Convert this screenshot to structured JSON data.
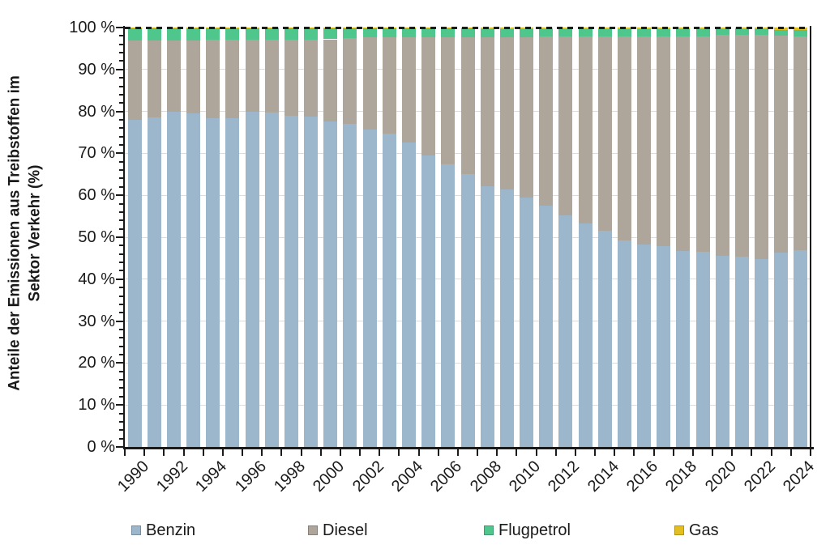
{
  "figure": {
    "y_axis_title_line1": "Anteile der Emissionen aus Treibstoffen im",
    "y_axis_title_line2": "Sektor Verkehr (%)"
  },
  "chart_data": {
    "type": "bar",
    "stacked": true,
    "title": "",
    "xlabel": "",
    "ylabel": "Anteile der Emissionen aus Treibstoffen im Sektor Verkehr (%)",
    "ylim": [
      0,
      100
    ],
    "y_major_tick_step": 10,
    "y_minor_tick_step": 2,
    "y_tick_labels": [
      "0 %",
      "10 %",
      "20 %",
      "30 %",
      "40 %",
      "50 %",
      "60 %",
      "70 %",
      "80 %",
      "90 %",
      "100 %"
    ],
    "grid": "horizontal-major",
    "reference_line": {
      "y": 100,
      "style": "dashed",
      "color": "#1a1a1a"
    },
    "legend_position": "bottom",
    "categories": [
      1990,
      1991,
      1992,
      1993,
      1994,
      1995,
      1996,
      1997,
      1998,
      1999,
      2000,
      2001,
      2002,
      2003,
      2004,
      2005,
      2006,
      2007,
      2008,
      2009,
      2010,
      2011,
      2012,
      2013,
      2014,
      2015,
      2016,
      2017,
      2018,
      2019,
      2020,
      2021,
      2022,
      2023,
      2024
    ],
    "x_tick_labels": [
      "1990",
      "1992",
      "1994",
      "1996",
      "1998",
      "2000",
      "2002",
      "2004",
      "2006",
      "2008",
      "2010",
      "2012",
      "2014",
      "2016",
      "2018",
      "2020",
      "2022",
      "2024"
    ],
    "series": [
      {
        "name": "Benzin",
        "color": "#9CB6CB",
        "values": [
          78.0,
          78.6,
          80.0,
          79.5,
          78.4,
          78.3,
          80.0,
          79.7,
          79.0,
          78.8,
          77.6,
          77.1,
          75.7,
          74.7,
          72.5,
          69.5,
          67.3,
          65.0,
          62.2,
          61.3,
          59.5,
          57.5,
          55.3,
          53.2,
          51.5,
          49.2,
          48.3,
          47.8,
          46.8,
          46.6,
          45.5,
          45.4,
          44.8,
          46.4,
          47.0
        ]
      },
      {
        "name": "Diesel",
        "color": "#AEA69B",
        "values": [
          18.9,
          18.3,
          17.0,
          17.5,
          18.7,
          18.8,
          17.1,
          17.4,
          18.1,
          18.3,
          19.6,
          20.3,
          21.9,
          23.0,
          25.2,
          28.2,
          30.4,
          32.7,
          35.5,
          36.4,
          38.2,
          40.3,
          42.5,
          44.7,
          46.4,
          48.7,
          49.6,
          50.1,
          51.1,
          51.3,
          52.8,
          52.9,
          53.4,
          51.6,
          50.9
        ]
      },
      {
        "name": "Flugpetrol",
        "color": "#4FC78C",
        "values": [
          3.0,
          3.0,
          2.9,
          2.9,
          2.8,
          2.8,
          2.8,
          2.8,
          2.8,
          2.8,
          2.6,
          2.4,
          2.2,
          2.1,
          2.1,
          2.1,
          2.1,
          2.1,
          2.0,
          2.0,
          2.0,
          1.9,
          1.9,
          1.8,
          1.8,
          1.8,
          1.8,
          1.8,
          1.8,
          1.8,
          1.3,
          1.3,
          1.4,
          1.5,
          1.5
        ]
      },
      {
        "name": "Gas",
        "color": "#E2BF1F",
        "values": [
          0.1,
          0.1,
          0.1,
          0.1,
          0.1,
          0.1,
          0.1,
          0.1,
          0.1,
          0.1,
          0.2,
          0.2,
          0.2,
          0.2,
          0.2,
          0.2,
          0.2,
          0.2,
          0.3,
          0.3,
          0.3,
          0.3,
          0.3,
          0.3,
          0.3,
          0.3,
          0.3,
          0.3,
          0.3,
          0.3,
          0.4,
          0.4,
          0.4,
          0.5,
          0.6
        ]
      }
    ],
    "axis_color": "#1a1a1a",
    "grid_color": "#dcdcdc",
    "background_color": "#ffffff"
  }
}
